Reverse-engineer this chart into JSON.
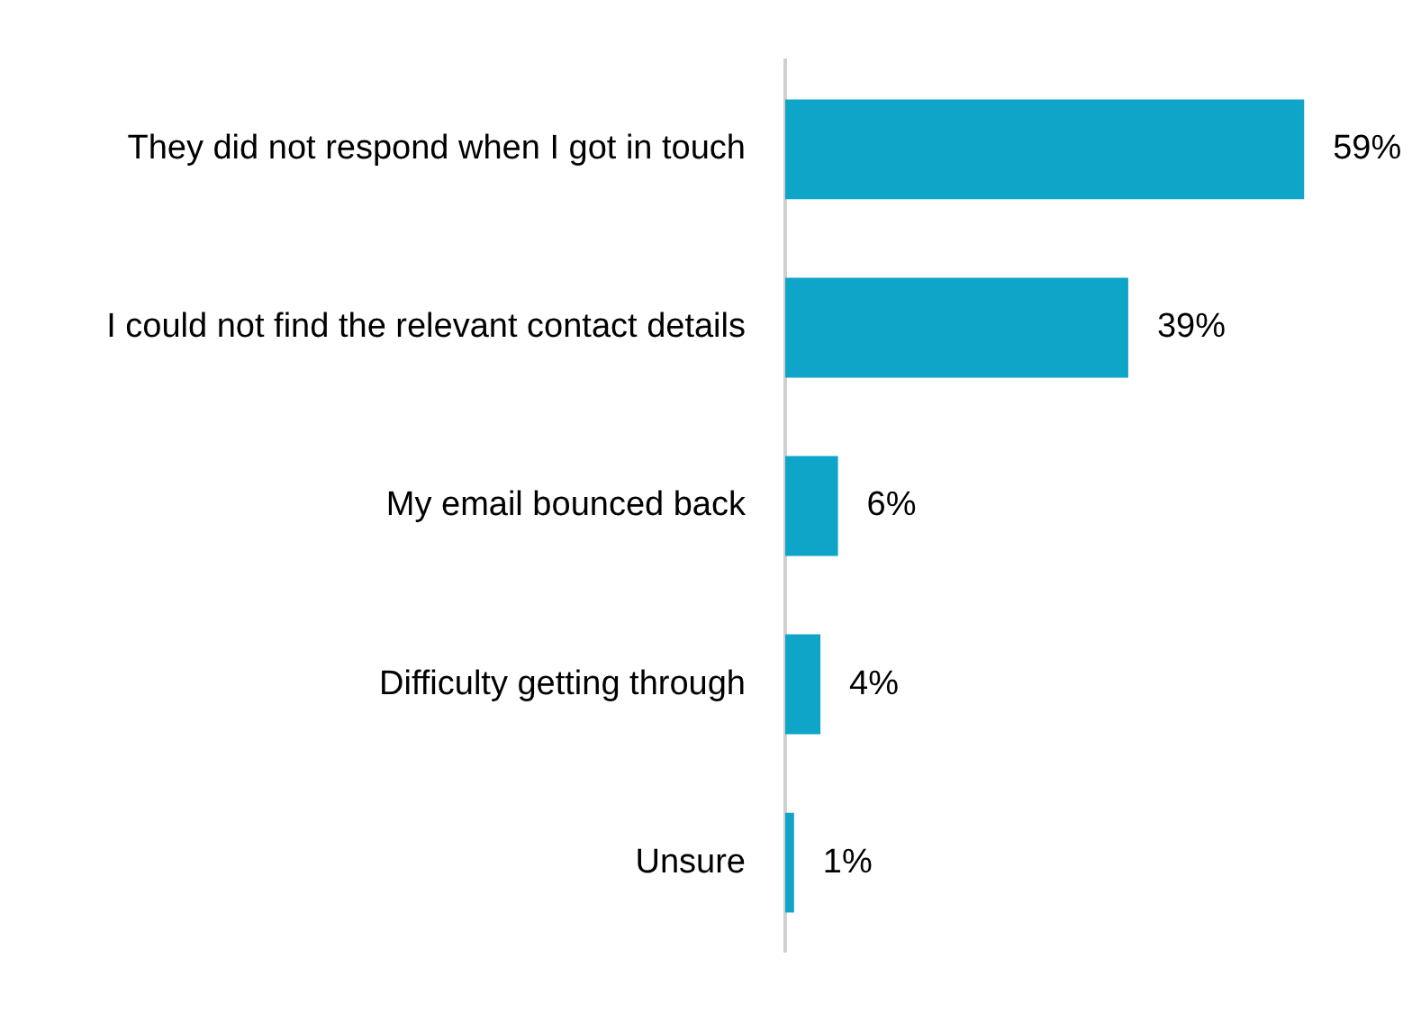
{
  "chart_data": {
    "type": "bar",
    "orientation": "horizontal",
    "categories": [
      "They did not respond when I got in touch",
      "I could not find the relevant contact details",
      "My email bounced back",
      "Difficulty getting through",
      "Unsure"
    ],
    "values": [
      59,
      39,
      6,
      4,
      1
    ],
    "value_labels": [
      "59%",
      "39%",
      "6%",
      "4%",
      "1%"
    ],
    "color": "#0ea5c8",
    "grid": false,
    "legend": false,
    "tick_labels": "y"
  }
}
